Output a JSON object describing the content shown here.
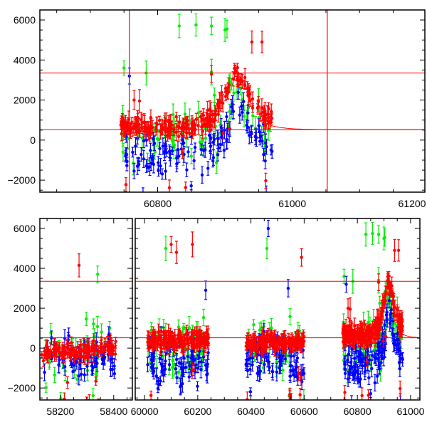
{
  "chart_data": {
    "type": "scatter",
    "title": "",
    "xlabel": "",
    "ylabel": "",
    "grid": false,
    "legend": "none",
    "panels": [
      {
        "name": "top",
        "ylim": [
          -2600,
          6500
        ],
        "yticks": [
          -2000,
          0,
          2000,
          4000,
          6000
        ],
        "segments": [
          {
            "xlim": [
              60625,
              61197
            ],
            "xticks": [
              60800,
              61000,
              61200
            ]
          }
        ],
        "hlines": [
          520,
          3350
        ],
        "vlines": [
          60758,
          61052
        ],
        "model_curve": {
          "x_start": 60950,
          "y_start": 1000,
          "baseline": 520,
          "decay_days": 22
        }
      },
      {
        "name": "bottom",
        "ylim": [
          -2600,
          6500
        ],
        "yticks": [
          -2000,
          0,
          2000,
          4000,
          6000
        ],
        "segments": [
          {
            "xlim": [
              58123,
              58470
            ],
            "xticks": [
              58200,
              58400
            ]
          },
          {
            "xlim": [
              59965,
              61035
            ],
            "xticks": [
              60000,
              60200,
              60400,
              60600,
              60800,
              61000
            ]
          }
        ],
        "hlines": [
          520,
          3350
        ],
        "vlines": [],
        "model_curve": {
          "x_start": 60950,
          "y_start": 1000,
          "baseline": 520,
          "decay_days": 22
        }
      }
    ],
    "series": [
      {
        "name": "green",
        "color": "#00ee00",
        "trends": [
          {
            "x": [
              58140,
              58400
            ],
            "y": [
              -400,
              -200
            ],
            "n": 45,
            "scatter": 900,
            "err": 350
          },
          {
            "x": [
              60010,
              60240
            ],
            "y": [
              0,
              100
            ],
            "n": 50,
            "scatter": 1000,
            "err": 400
          },
          {
            "x": [
              60380,
              60600
            ],
            "y": [
              0,
              0
            ],
            "n": 45,
            "scatter": 900,
            "err": 400
          },
          {
            "x": [
              60745,
              60880,
              60915,
              60940,
              60970
            ],
            "y": [
              300,
              600,
              2400,
              1500,
              500
            ],
            "n": 70,
            "scatter": 900,
            "err": 400
          }
        ],
        "outliers": [
          [
            60832,
            5700
          ],
          [
            60857,
            5750
          ],
          [
            60750,
            3600
          ],
          [
            60783,
            3350
          ],
          [
            60903,
            5550
          ],
          [
            60950,
            2000
          ],
          [
            58340,
            3700
          ],
          [
            60080,
            5000
          ],
          [
            60460,
            5000
          ],
          [
            60880,
            5700
          ],
          [
            60900,
            5500
          ],
          [
            60880,
            3400
          ]
        ]
      },
      {
        "name": "blue",
        "color": "#0000ff",
        "trends": [
          {
            "x": [
              58140,
              58410
            ],
            "y": [
              -500,
              -300
            ],
            "n": 70,
            "scatter": 800,
            "err": 300
          },
          {
            "x": [
              60010,
              60240
            ],
            "y": [
              -800,
              -700
            ],
            "n": 90,
            "scatter": 900,
            "err": 300
          },
          {
            "x": [
              60380,
              60600
            ],
            "y": [
              -700,
              -600
            ],
            "n": 90,
            "scatter": 900,
            "err": 300
          },
          {
            "x": [
              60750,
              60880,
              60905,
              60920,
              60940,
              60970
            ],
            "y": [
              -800,
              -600,
              800,
              1800,
              400,
              -700
            ],
            "n": 120,
            "scatter": 700,
            "err": 300
          }
        ],
        "outliers": [
          [
            60758,
            3200
          ],
          [
            60465,
            6000
          ],
          [
            60230,
            2900
          ],
          [
            60540,
            3000
          ]
        ]
      },
      {
        "name": "red",
        "color": "#ff0000",
        "trends": [
          {
            "x": [
              58130,
              58410
            ],
            "y": [
              -250,
              0
            ],
            "n": 130,
            "scatter": 260,
            "err": 260
          },
          {
            "x": [
              60010,
              60240
            ],
            "y": [
              350,
              450
            ],
            "n": 160,
            "scatter": 280,
            "err": 280
          },
          {
            "x": [
              60380,
              60600
            ],
            "y": [
              300,
              300
            ],
            "n": 150,
            "scatter": 280,
            "err": 280
          },
          {
            "x": [
              60745,
              60850,
              60880,
              60900,
              60915,
              60925,
              60940,
              60955,
              60970
            ],
            "y": [
              600,
              700,
              1100,
              2200,
              3300,
              3000,
              2200,
              1300,
              900
            ],
            "n": 230,
            "scatter": 300,
            "err": 300
          }
        ],
        "outliers": [
          [
            60765,
            2000
          ],
          [
            60773,
            1950
          ],
          [
            60955,
            4900
          ],
          [
            58270,
            4150
          ],
          [
            60100,
            5200
          ],
          [
            60180,
            5200
          ],
          [
            60590,
            4550
          ],
          [
            60120,
            4800
          ],
          [
            60880,
            3300
          ],
          [
            60940,
            4900
          ]
        ]
      }
    ]
  }
}
